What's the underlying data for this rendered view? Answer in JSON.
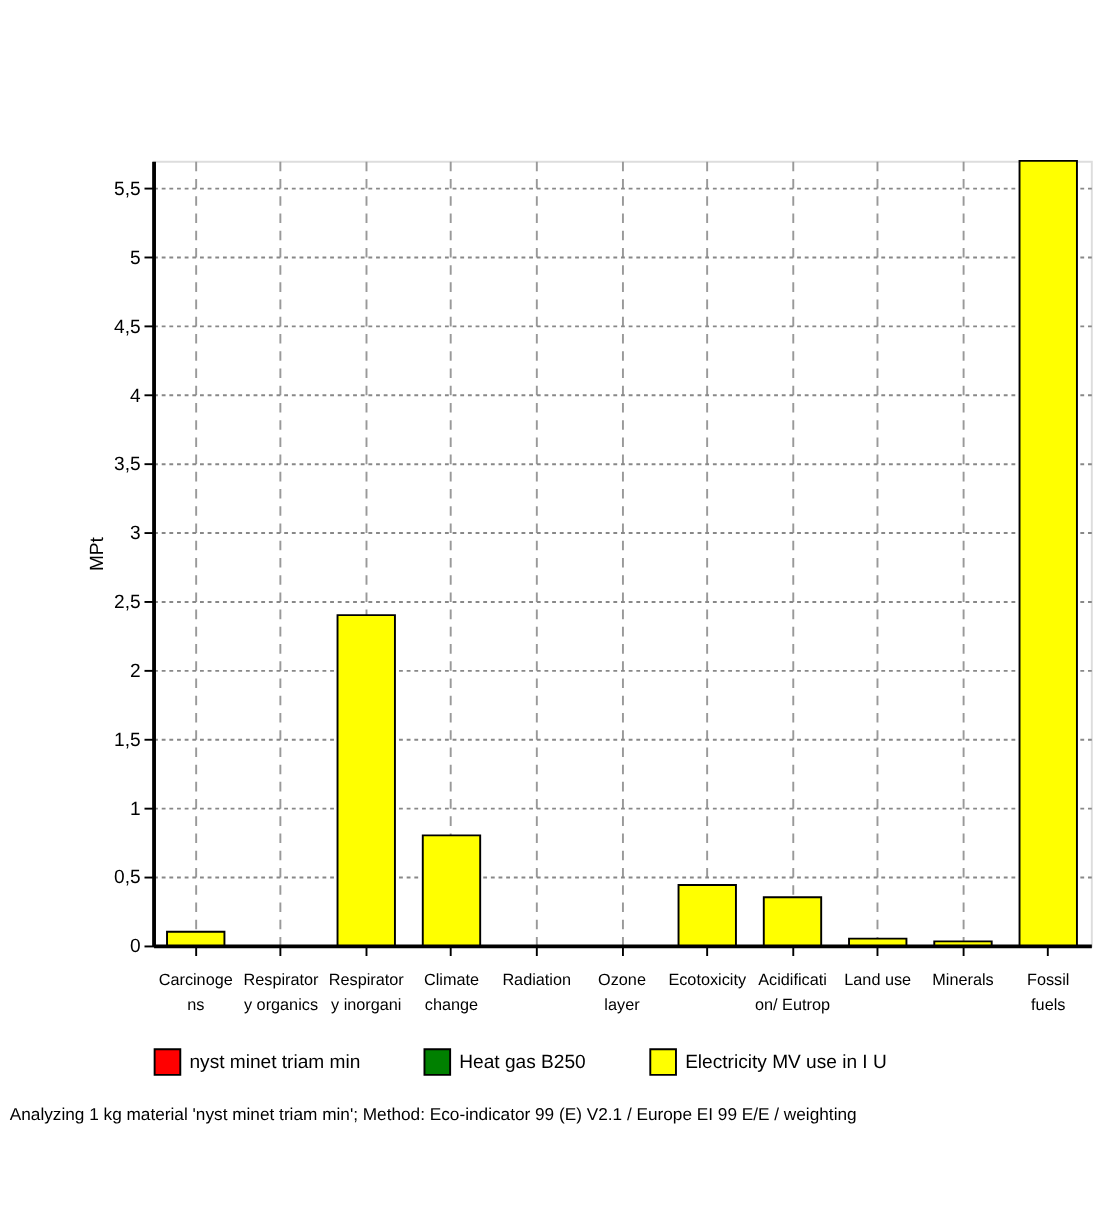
{
  "chart_data": {
    "type": "bar",
    "ylabel": "MPt",
    "categories": [
      "Carcinoge\nns",
      "Respirator\ny organics",
      "Respirator\ny inorgani",
      "Climate\nchange",
      "Radiation",
      "Ozone\nlayer",
      "Ecotoxicity",
      "Acidificati\non/ Eutrop",
      "Land use",
      "Minerals",
      "Fossil\nfuels"
    ],
    "series": [
      {
        "name": "nyst minet triam min",
        "color": "#ff0000",
        "values": [
          null,
          null,
          null,
          null,
          null,
          null,
          null,
          null,
          null,
          null,
          null
        ]
      },
      {
        "name": "Heat gas B250",
        "color": "#008000",
        "values": [
          null,
          null,
          null,
          null,
          null,
          null,
          null,
          null,
          null,
          null,
          null
        ]
      },
      {
        "name": "Electricity MV use in I U",
        "color": "#ffff00",
        "values": [
          0.1,
          null,
          2.4,
          0.8,
          null,
          null,
          0.44,
          0.35,
          0.05,
          0.03,
          5.7
        ]
      }
    ],
    "ylim": [
      0,
      5.7
    ],
    "yticks": [
      0,
      {
        "value": 0.5,
        "label": "0,5"
      },
      1,
      {
        "value": 1.5,
        "label": "1,5"
      },
      2,
      {
        "value": 2.5,
        "label": "2,5"
      },
      3,
      {
        "value": 3.5,
        "label": "3,5"
      },
      4,
      {
        "value": 4.5,
        "label": "4,5"
      },
      5,
      {
        "value": 5.5,
        "label": "5,5"
      }
    ],
    "grid": true,
    "legend": "bottom",
    "annotations": [
      "Analyzing 1 kg material 'nyst minet triam min';  Method: Eco-indicator 99 (E) V2.1 / Europe EI 99 E/E / weighting"
    ]
  }
}
